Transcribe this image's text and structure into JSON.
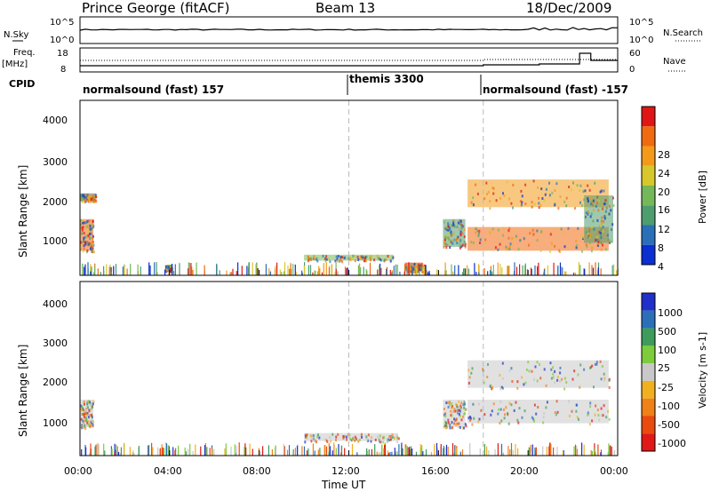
{
  "header": {
    "station": "Prince George (fitACF)",
    "beam": "Beam 13",
    "date": "18/Dec/2009"
  },
  "top_panels": {
    "nsky_label": "N.Sky",
    "nsky_ticks": [
      "10^5",
      "10^0"
    ],
    "nsearch_label": "N.Search",
    "nsearch_ticks": [
      "10^5",
      "10^0"
    ],
    "freq_label_1": "Freq.",
    "freq_label_2": "[MHz]",
    "freq_ticks": [
      "18",
      "8"
    ],
    "nave_label": "Nave",
    "nave_ticks": [
      "60",
      "0"
    ],
    "cpid_label": "CPID"
  },
  "cpid_segments": [
    {
      "label": "normalsound (fast) 157",
      "start_hour": 0
    },
    {
      "label": "themis 3300",
      "start_hour": 12
    },
    {
      "label": "normalsound (fast) -157",
      "start_hour": 18
    }
  ],
  "x_axis": {
    "label": "Time UT",
    "ticks": [
      "00:00",
      "04:00",
      "08:00",
      "12:00",
      "16:00",
      "20:00",
      "00:00"
    ]
  },
  "power_panel": {
    "ylabel": "Slant Range [km]",
    "yticks": [
      "4000",
      "3000",
      "2000",
      "1000"
    ],
    "colorbar_label": "Power [dB]",
    "colorbar_ticks": [
      "28",
      "24",
      "20",
      "16",
      "12",
      "8",
      "4"
    ],
    "colors": [
      "#0b2fd0",
      "#2a6fb8",
      "#4f9d6e",
      "#74b85a",
      "#d7c72c",
      "#f39a1a",
      "#f06a10",
      "#e01616"
    ]
  },
  "velocity_panel": {
    "ylabel": "Slant Range [km]",
    "yticks": [
      "4000",
      "3000",
      "2000",
      "1000"
    ],
    "colorbar_label": "Velocity [m s-1]",
    "colorbar_ticks": [
      "1000",
      "500",
      "100",
      "25",
      "-25",
      "-100",
      "-500",
      "-1000"
    ],
    "colors": [
      "#2030c8",
      "#2a6fb8",
      "#3e9c5a",
      "#7ccc3c",
      "#c8c8c8",
      "#f0b020",
      "#f08018",
      "#e84a10",
      "#e01818"
    ]
  },
  "chart_data": [
    {
      "type": "heatmap",
      "title": "Power",
      "xlabel": "Time UT",
      "ylabel": "Slant Range [km]",
      "xlim_hours": [
        0,
        24
      ],
      "ylim": [
        180,
        4600
      ],
      "colorbar": {
        "label": "Power [dB]",
        "range": [
          0,
          30
        ]
      },
      "regions": [
        {
          "t0": 0.0,
          "t1": 0.6,
          "r0": 800,
          "r1": 1600,
          "value": 26
        },
        {
          "t0": 0.0,
          "t1": 0.7,
          "r0": 2050,
          "r1": 2250,
          "value": 6
        },
        {
          "t0": 3.8,
          "t1": 4.1,
          "r0": 300,
          "r1": 450,
          "value": 18
        },
        {
          "t0": 10.0,
          "t1": 14.0,
          "r0": 550,
          "r1": 700,
          "value": 12
        },
        {
          "t0": 14.5,
          "t1": 15.3,
          "r0": 280,
          "r1": 500,
          "value": 27
        },
        {
          "t0": 16.2,
          "t1": 17.2,
          "r0": 900,
          "r1": 1600,
          "value": 8
        },
        {
          "t0": 17.3,
          "t1": 23.6,
          "r0": 1900,
          "r1": 2600,
          "value": 22
        },
        {
          "t0": 17.3,
          "t1": 23.6,
          "r0": 800,
          "r1": 1400,
          "value": 26
        },
        {
          "t0": 22.5,
          "t1": 23.8,
          "r0": 1000,
          "r1": 2200,
          "value": 10
        }
      ]
    },
    {
      "type": "heatmap",
      "title": "Velocity",
      "xlabel": "Time UT",
      "ylabel": "Slant Range [km]",
      "xlim_hours": [
        0,
        24
      ],
      "ylim": [
        180,
        4600
      ],
      "colorbar": {
        "label": "Velocity [m s-1]",
        "range": [
          -1000,
          1000
        ]
      },
      "regions": [
        {
          "t0": 0.0,
          "t1": 0.6,
          "r0": 900,
          "r1": 1600,
          "value": -90
        },
        {
          "t0": 10.0,
          "t1": 14.2,
          "r0": 550,
          "r1": 750,
          "value": -60
        },
        {
          "t0": 16.2,
          "t1": 17.2,
          "r0": 900,
          "r1": 1600,
          "value": 0
        },
        {
          "t0": 17.3,
          "t1": 23.6,
          "r0": 1900,
          "r1": 2600,
          "value": 80
        },
        {
          "t0": 17.3,
          "t1": 23.6,
          "r0": 1000,
          "r1": 1600,
          "value": 0
        }
      ]
    }
  ]
}
